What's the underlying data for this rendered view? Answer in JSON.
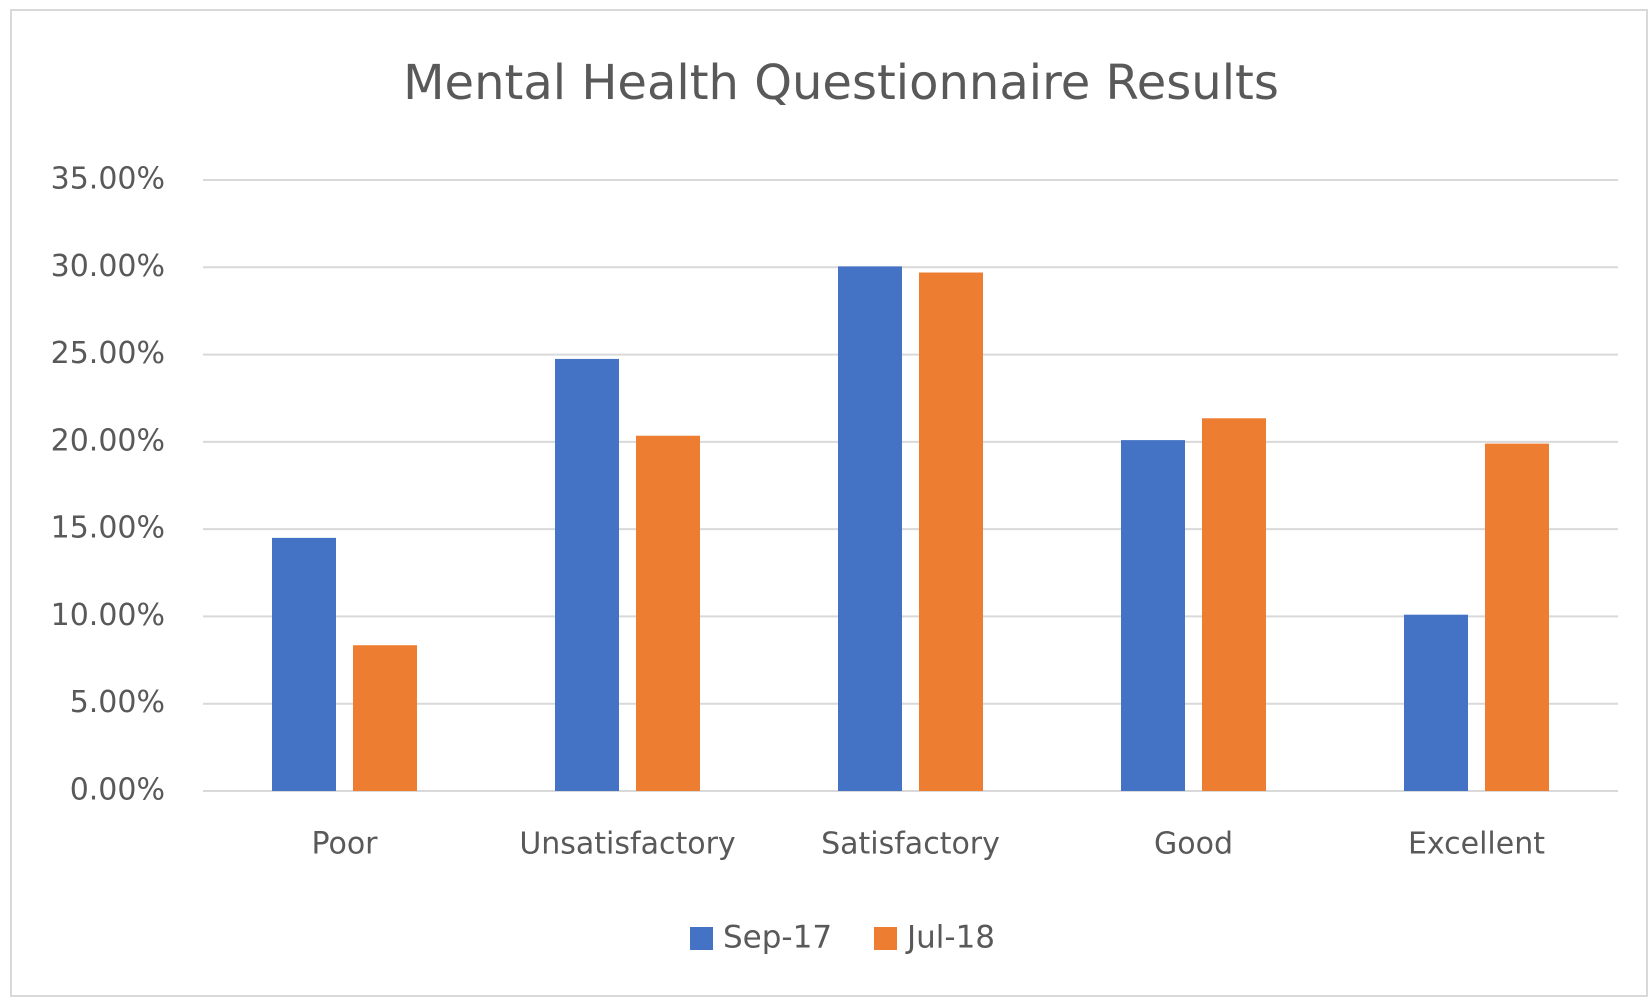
{
  "chart_data": {
    "type": "bar",
    "title": "Mental Health Questionnaire Results",
    "categories": [
      "Poor",
      "Unsatisfactory",
      "Satisfactory",
      "Good",
      "Excellent"
    ],
    "series": [
      {
        "name": "Sep-17",
        "color": "#4472c4",
        "values": [
          14.5,
          24.75,
          30.05,
          20.1,
          10.1
        ]
      },
      {
        "name": "Jul-18",
        "color": "#ed7d31",
        "values": [
          8.35,
          20.35,
          29.7,
          21.35,
          19.9
        ]
      }
    ],
    "ylim": [
      0,
      35
    ],
    "yticks": [
      {
        "value": 0,
        "label": "0.00%"
      },
      {
        "value": 5,
        "label": "5.00%"
      },
      {
        "value": 10,
        "label": "10.00%"
      },
      {
        "value": 15,
        "label": "15.00%"
      },
      {
        "value": 20,
        "label": "20.00%"
      },
      {
        "value": 25,
        "label": "25.00%"
      },
      {
        "value": 30,
        "label": "30.00%"
      },
      {
        "value": 35,
        "label": "35.00%"
      }
    ],
    "grid": true,
    "legend": "bottom"
  }
}
